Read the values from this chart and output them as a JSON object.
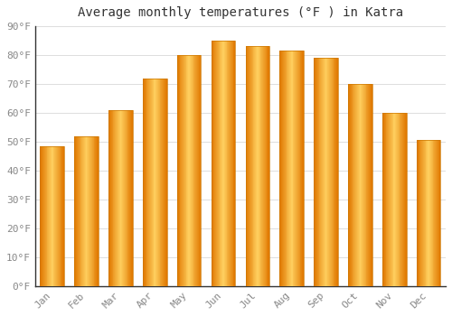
{
  "title": "Average monthly temperatures (°F ) in Katra",
  "months": [
    "Jan",
    "Feb",
    "Mar",
    "Apr",
    "May",
    "Jun",
    "Jul",
    "Aug",
    "Sep",
    "Oct",
    "Nov",
    "Dec"
  ],
  "values": [
    48.5,
    52,
    61,
    72,
    80,
    85,
    83,
    81.5,
    79,
    70,
    60,
    50.5
  ],
  "bar_color_main": "#FFA500",
  "bar_color_light": "#FFD060",
  "bar_color_dark": "#E07800",
  "background_color": "#FFFFFF",
  "plot_bg_color": "#FFFFFF",
  "grid_color": "#DDDDDD",
  "ylim": [
    0,
    90
  ],
  "yticks": [
    0,
    10,
    20,
    30,
    40,
    50,
    60,
    70,
    80,
    90
  ],
  "ytick_labels": [
    "0°F",
    "10°F",
    "20°F",
    "30°F",
    "40°F",
    "50°F",
    "60°F",
    "70°F",
    "80°F",
    "90°F"
  ],
  "title_fontsize": 10,
  "tick_fontsize": 8,
  "tick_color": "#888888",
  "spine_color": "#333333",
  "bar_width": 0.7
}
